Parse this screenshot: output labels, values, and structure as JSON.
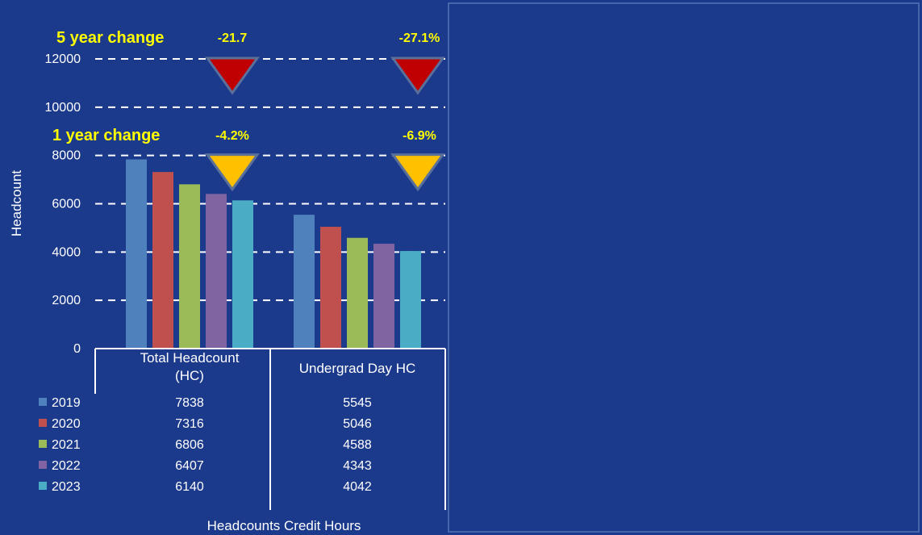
{
  "chart_data": {
    "type": "bar",
    "ylabel": "Headcount",
    "xlabel": "Headcounts Credit Hours",
    "ylim": [
      0,
      12000
    ],
    "yticks": [
      0,
      2000,
      4000,
      6000,
      8000,
      10000,
      12000
    ],
    "grid": true,
    "categories": [
      "Total Headcount (HC)",
      "Undergrad Day HC"
    ],
    "category_lines": [
      [
        "Total Headcount",
        "(HC)"
      ],
      [
        "Undergrad Day HC"
      ]
    ],
    "series": [
      {
        "name": "2019",
        "color": "#4f81bd",
        "values": [
          7838,
          5545
        ]
      },
      {
        "name": "2020",
        "color": "#c0504d",
        "values": [
          7316,
          5046
        ]
      },
      {
        "name": "2021",
        "color": "#9bbb59",
        "values": [
          6806,
          4588
        ]
      },
      {
        "name": "2022",
        "color": "#8064a2",
        "values": [
          6407,
          4343
        ]
      },
      {
        "name": "2023",
        "color": "#4bacc6",
        "values": [
          6140,
          4042
        ]
      }
    ],
    "legend": "data-table",
    "annotations": {
      "five_year": {
        "label": "5 year change",
        "values": [
          "-21.7",
          "-27.1%"
        ],
        "arrow_color": "#c00000",
        "level": 12000
      },
      "one_year": {
        "label": "1 year change",
        "values": [
          "-4.2%",
          "-6.9%"
        ],
        "arrow_color": "#ffc000",
        "level": 8000
      }
    }
  }
}
